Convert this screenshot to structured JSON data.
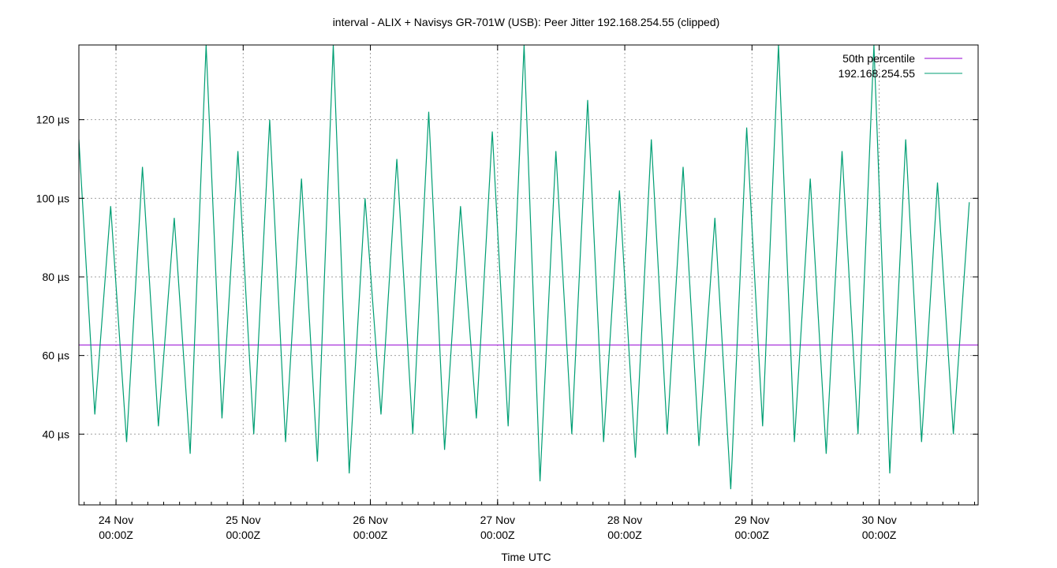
{
  "chart_data": {
    "type": "line",
    "title": "interval - ALIX + Navisys GR-701W (USB): Peer Jitter 192.168.254.55 (clipped)",
    "xlabel": "Time UTC",
    "ylabel": "",
    "ylim": [
      22,
      139
    ],
    "xlim": [
      "2016-11-23T17:00Z",
      "2016-11-30T18:40Z"
    ],
    "grid": true,
    "legend_position": "top-right",
    "y_ticks": [
      {
        "value": 40,
        "label": "40 µs"
      },
      {
        "value": 60,
        "label": "60 µs"
      },
      {
        "value": 80,
        "label": "80 µs"
      },
      {
        "value": 100,
        "label": "100 µs"
      },
      {
        "value": 120,
        "label": "120 µs"
      }
    ],
    "x_ticks": [
      {
        "value": "2016-11-24T00:00Z",
        "line1": "24 Nov",
        "line2": "00:00Z"
      },
      {
        "value": "2016-11-25T00:00Z",
        "line1": "25 Nov",
        "line2": "00:00Z"
      },
      {
        "value": "2016-11-26T00:00Z",
        "line1": "26 Nov",
        "line2": "00:00Z"
      },
      {
        "value": "2016-11-27T00:00Z",
        "line1": "27 Nov",
        "line2": "00:00Z"
      },
      {
        "value": "2016-11-28T00:00Z",
        "line1": "28 Nov",
        "line2": "00:00Z"
      },
      {
        "value": "2016-11-29T00:00Z",
        "line1": "29 Nov",
        "line2": "00:00Z"
      },
      {
        "value": "2016-11-30T00:00Z",
        "line1": "30 Nov",
        "line2": "00:00Z"
      }
    ],
    "series": [
      {
        "name": "50th percentile",
        "color": "#9400d3",
        "x": [
          "2016-11-23T17:00Z",
          "2016-11-30T18:40Z"
        ],
        "values": [
          62.7,
          62.7
        ]
      },
      {
        "name": "192.168.254.55",
        "color": "#009e73",
        "x": [
          "2016-11-23T17:00Z",
          "2016-11-23T20:00Z",
          "2016-11-23T23:00Z",
          "2016-11-24T02:00Z",
          "2016-11-24T05:00Z",
          "2016-11-24T08:00Z",
          "2016-11-24T11:00Z",
          "2016-11-24T14:00Z",
          "2016-11-24T17:00Z",
          "2016-11-24T20:00Z",
          "2016-11-24T23:00Z",
          "2016-11-25T02:00Z",
          "2016-11-25T05:00Z",
          "2016-11-25T08:00Z",
          "2016-11-25T11:00Z",
          "2016-11-25T14:00Z",
          "2016-11-25T17:00Z",
          "2016-11-25T20:00Z",
          "2016-11-25T23:00Z",
          "2016-11-26T02:00Z",
          "2016-11-26T05:00Z",
          "2016-11-26T08:00Z",
          "2016-11-26T11:00Z",
          "2016-11-26T14:00Z",
          "2016-11-26T17:00Z",
          "2016-11-26T20:00Z",
          "2016-11-26T23:00Z",
          "2016-11-27T02:00Z",
          "2016-11-27T05:00Z",
          "2016-11-27T08:00Z",
          "2016-11-27T11:00Z",
          "2016-11-27T14:00Z",
          "2016-11-27T17:00Z",
          "2016-11-27T20:00Z",
          "2016-11-27T23:00Z",
          "2016-11-28T02:00Z",
          "2016-11-28T05:00Z",
          "2016-11-28T08:00Z",
          "2016-11-28T11:00Z",
          "2016-11-28T14:00Z",
          "2016-11-28T17:00Z",
          "2016-11-28T20:00Z",
          "2016-11-28T23:00Z",
          "2016-11-29T02:00Z",
          "2016-11-29T05:00Z",
          "2016-11-29T08:00Z",
          "2016-11-29T11:00Z",
          "2016-11-29T14:00Z",
          "2016-11-29T17:00Z",
          "2016-11-29T20:00Z",
          "2016-11-29T23:00Z",
          "2016-11-30T02:00Z",
          "2016-11-30T05:00Z",
          "2016-11-30T08:00Z",
          "2016-11-30T11:00Z",
          "2016-11-30T14:00Z",
          "2016-11-30T17:00Z"
        ],
        "values": [
          115,
          45,
          98,
          38,
          108,
          42,
          95,
          35,
          139,
          44,
          112,
          40,
          120,
          38,
          105,
          33,
          139,
          30,
          100,
          45,
          110,
          40,
          122,
          36,
          98,
          44,
          117,
          42,
          139,
          28,
          112,
          40,
          125,
          38,
          102,
          34,
          115,
          40,
          108,
          37,
          95,
          26,
          118,
          42,
          139,
          38,
          105,
          35,
          112,
          40,
          139,
          30,
          115,
          38,
          104,
          40,
          99
        ]
      }
    ]
  }
}
